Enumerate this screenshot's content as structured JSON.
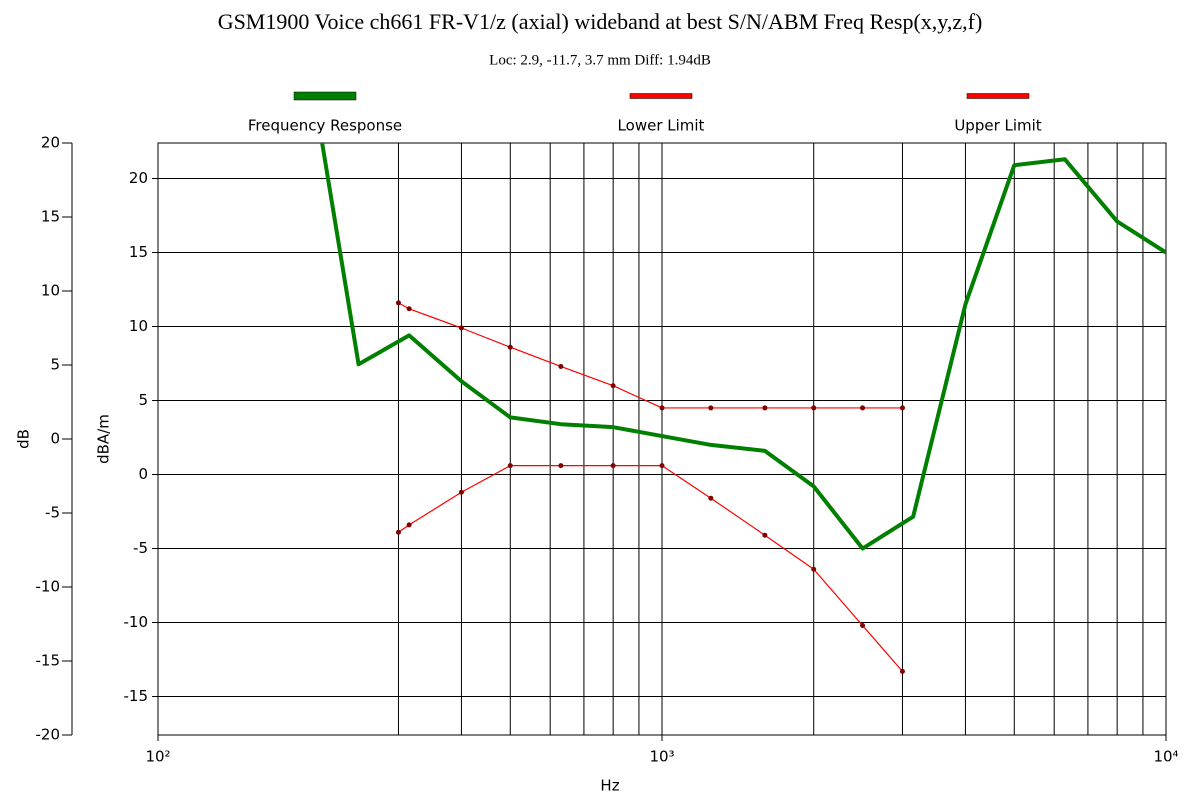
{
  "chart_data": {
    "type": "line",
    "title": "GSM1900 Voice ch661 FR-V1/z (axial) wideband at best S/N/ABM Freq Resp(x,y,z,f)",
    "subtitle": "Loc: 2.9, -11.7, 3.7 mm Diff: 1.94dB",
    "xlabel": "Hz",
    "ylabel": "dB",
    "y2label": "dBA/m",
    "xscale": "log",
    "xlim": [
      100,
      10000
    ],
    "xticks": [
      {
        "value": 100,
        "label": "10²"
      },
      {
        "value": 1000,
        "label": "10³"
      },
      {
        "value": 10000,
        "label": "10⁴"
      }
    ],
    "xgrid": [
      300,
      400,
      500,
      600,
      700,
      800,
      900,
      1000,
      2000,
      3000,
      4000,
      5000,
      6000,
      7000,
      8000,
      9000
    ],
    "ylim": [
      -20,
      20
    ],
    "yticks": [
      -20,
      -15,
      -10,
      -5,
      0,
      5,
      10,
      15,
      20
    ],
    "y2lim": [
      -17.6,
      22.4
    ],
    "y2ticks": [
      -15,
      -10,
      -5,
      0,
      5,
      10,
      15,
      20
    ],
    "grid": true,
    "legend": "top",
    "series": [
      {
        "name": "Frequency Response",
        "color": "#007f00",
        "axis": "y2",
        "x": [
          200,
          250,
          315,
          400,
          500,
          630,
          800,
          1000,
          1250,
          1600,
          2000,
          2500,
          3150,
          4000,
          5000,
          6300,
          8000,
          10000
        ],
        "values": [
          27.5,
          7.45,
          9.4,
          6.3,
          3.86,
          3.4,
          3.2,
          2.6,
          2.0,
          1.6,
          -0.8,
          -5.0,
          -2.85,
          11.5,
          20.9,
          21.3,
          17.1,
          15.0
        ]
      },
      {
        "name": "Lower Limit",
        "color": "#ff0000",
        "axis": "y2",
        "x": [
          300,
          315,
          400,
          500,
          630,
          800,
          1000,
          1250,
          1600,
          2000,
          2500,
          3000
        ],
        "values": [
          -3.9,
          -3.4,
          -1.2,
          0.6,
          0.6,
          0.6,
          0.6,
          -1.6,
          -4.1,
          -6.4,
          -10.2,
          -13.3
        ]
      },
      {
        "name": "Upper Limit",
        "color": "#ff0000",
        "axis": "y2",
        "x": [
          300,
          315,
          400,
          500,
          630,
          800,
          1000,
          1250,
          1600,
          2000,
          2500,
          3000
        ],
        "values": [
          11.6,
          11.2,
          9.9,
          8.6,
          7.3,
          6.0,
          4.5,
          4.5,
          4.5,
          4.5,
          4.5,
          4.5
        ]
      }
    ]
  }
}
